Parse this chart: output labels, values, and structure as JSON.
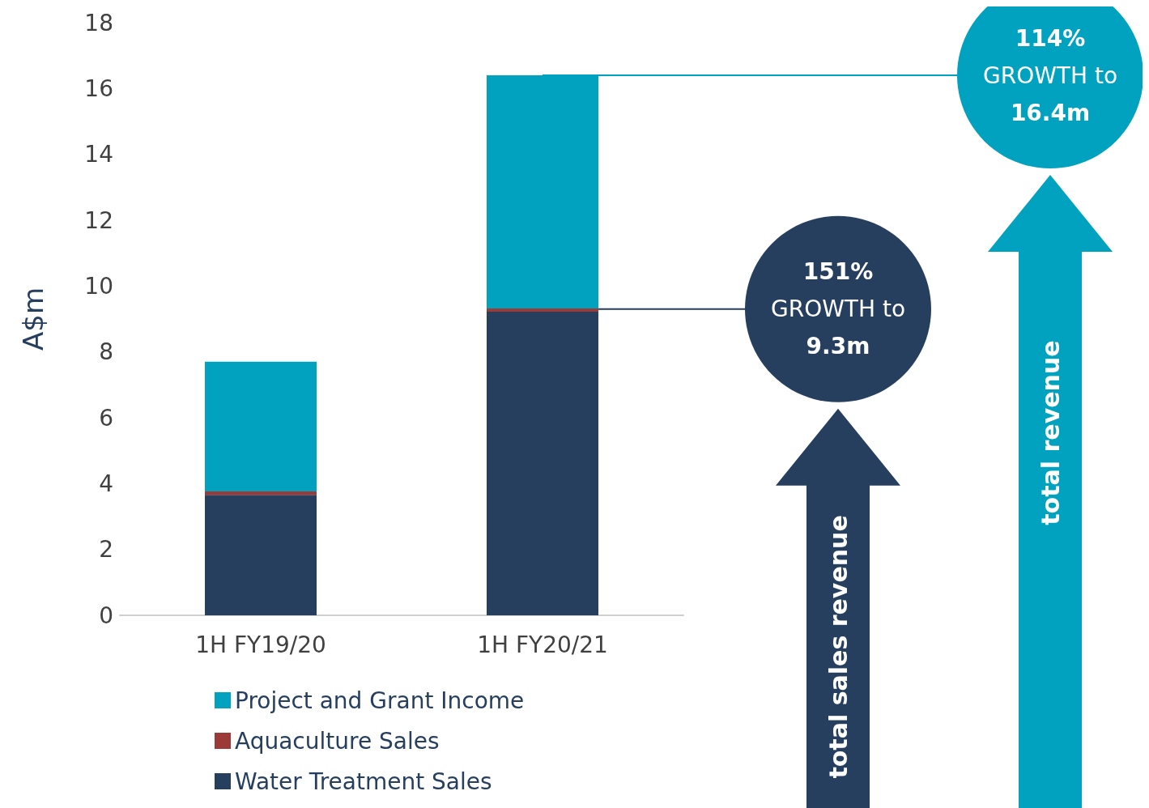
{
  "chart_data": {
    "type": "bar",
    "stacked": true,
    "ylabel": "A$m",
    "categories": [
      "1H FY19/20",
      "1H FY20/21"
    ],
    "series": [
      {
        "name": "Water Treatment Sales",
        "color": "#273f5f",
        "values": [
          3.66,
          9.22
        ]
      },
      {
        "name": "Aquaculture Sales",
        "color": "#9b3a36",
        "values": [
          0.1,
          0.1
        ]
      },
      {
        "name": "Project and Grant Income",
        "color": "#00a2bf",
        "values": [
          3.94,
          7.08
        ]
      }
    ],
    "ylim": [
      0,
      18
    ],
    "yticks": [
      0,
      2,
      4,
      6,
      8,
      10,
      12,
      14,
      16,
      18
    ],
    "grid": false,
    "legend": "bottom",
    "annotations": [
      {
        "text": "151%\nGROWTH to\n9.3m",
        "x": "1H FY20/21",
        "y": 9.3
      },
      {
        "text": "114%\nGROWTH to\n16.4m",
        "x": "1H FY20/21",
        "y": 16.4
      },
      "total sales revenue",
      "total revenue"
    ]
  }
}
